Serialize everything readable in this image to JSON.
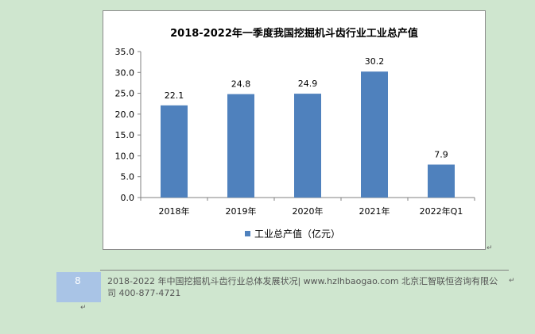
{
  "chart_data": {
    "type": "bar",
    "title": "2018-2022年一季度我国挖掘机斗齿行业工业总产值",
    "categories": [
      "2018年",
      "2019年",
      "2020年",
      "2021年",
      "2022年Q1"
    ],
    "series": [
      {
        "name": "工业总产值（亿元）",
        "values": [
          22.1,
          24.8,
          24.9,
          30.2,
          7.9
        ]
      }
    ],
    "value_labels": [
      "22.1",
      "24.8",
      "24.9",
      "30.2",
      "7.9"
    ],
    "ylim": [
      0,
      35
    ],
    "yticks": [
      "0.0",
      "5.0",
      "10.0",
      "15.0",
      "20.0",
      "25.0",
      "30.0",
      "35.0"
    ],
    "xlabel": "",
    "ylabel": "",
    "grid": false,
    "legend_position": "bottom",
    "bar_color": "#4f81bd"
  },
  "footer": {
    "page_number": "8",
    "text": "2018-2022 年中国挖掘机斗齿行业总体发展状况| www.hzlhbaogao.com 北京汇智联恒咨询有限公司  400-877-4721"
  },
  "marks": {
    "paragraph": "↵"
  }
}
